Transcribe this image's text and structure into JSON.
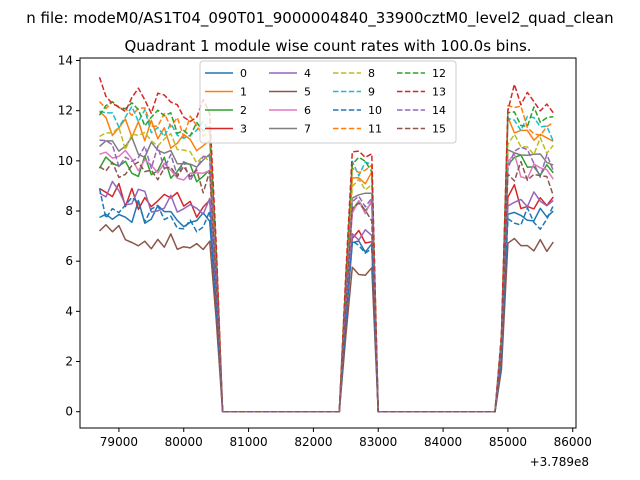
{
  "chart_data": {
    "type": "line",
    "suptitle": "n file: modeM0/AS1T04_090T01_9000004840_33900cztM0_level2_quad_clean",
    "title": "Quadrant 1 module wise count rates with 100.0s bins.",
    "xlabel": "",
    "ylabel": "",
    "x_offset_label": "+3.789e8",
    "xlim": [
      78400,
      86050
    ],
    "ylim": [
      -0.65,
      14.1
    ],
    "xticks": [
      79000,
      80000,
      81000,
      82000,
      83000,
      84000,
      85000,
      86000
    ],
    "yticks": [
      0,
      2,
      4,
      6,
      8,
      10,
      12,
      14
    ],
    "grid": false,
    "legend_position": "top-center",
    "legend_columns": 4,
    "segments": [
      {
        "start": 78700,
        "end": 80400,
        "step": 100
      },
      {
        "start": 82600,
        "end": 82900,
        "step": 100
      },
      {
        "start": 85000,
        "end": 85700,
        "step": 100
      }
    ],
    "ramps": [
      {
        "from": 80400,
        "to": 80600,
        "direction": "down"
      },
      {
        "from": 82400,
        "to": 82600,
        "direction": "up"
      },
      {
        "from": 82900,
        "to": 83000,
        "direction": "down"
      },
      {
        "from": 84800,
        "to": 85000,
        "direction": "up"
      }
    ],
    "series": [
      {
        "name": "0",
        "color": "#1f77b4",
        "dashed": false,
        "level": 7.7,
        "amp": 0.5
      },
      {
        "name": "1",
        "color": "#ff7f0e",
        "dashed": false,
        "level": 11.0,
        "amp": 0.5
      },
      {
        "name": "2",
        "color": "#2ca02c",
        "dashed": false,
        "level": 9.6,
        "amp": 0.5
      },
      {
        "name": "3",
        "color": "#d62728",
        "dashed": false,
        "level": 8.3,
        "amp": 0.5
      },
      {
        "name": "4",
        "color": "#9467bd",
        "dashed": false,
        "level": 8.3,
        "amp": 0.5
      },
      {
        "name": "5",
        "color": "#8c564b",
        "dashed": false,
        "level": 6.7,
        "amp": 0.4
      },
      {
        "name": "6",
        "color": "#e377c2",
        "dashed": false,
        "level": 9.6,
        "amp": 0.5
      },
      {
        "name": "7",
        "color": "#7f7f7f",
        "dashed": false,
        "level": 10.3,
        "amp": 0.4
      },
      {
        "name": "8",
        "color": "#bcbd22",
        "dashed": true,
        "level": 10.6,
        "amp": 0.5
      },
      {
        "name": "9",
        "color": "#17becf",
        "dashed": true,
        "level": 11.4,
        "amp": 0.5
      },
      {
        "name": "10",
        "color": "#1f77b4",
        "dashed": true,
        "level": 7.8,
        "amp": 0.6
      },
      {
        "name": "11",
        "color": "#ff7f0e",
        "dashed": true,
        "level": 11.5,
        "amp": 0.5
      },
      {
        "name": "12",
        "color": "#2ca02c",
        "dashed": true,
        "level": 11.6,
        "amp": 0.5
      },
      {
        "name": "13",
        "color": "#d62728",
        "dashed": true,
        "level": 12.2,
        "amp": 0.6
      },
      {
        "name": "14",
        "color": "#9467bd",
        "dashed": true,
        "level": 9.9,
        "amp": 0.6
      },
      {
        "name": "15",
        "color": "#8c564b",
        "dashed": true,
        "level": 9.3,
        "amp": 0.6
      }
    ]
  }
}
